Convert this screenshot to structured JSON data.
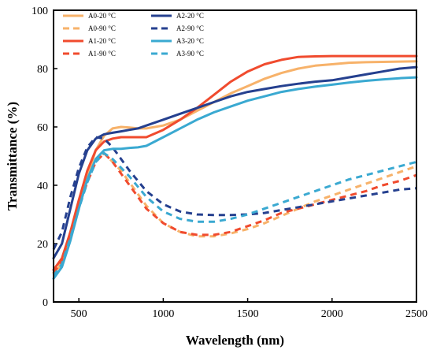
{
  "chart_data": {
    "type": "line",
    "xlabel": "Wavelength (nm)",
    "ylabel": "Transmittance (%)",
    "xlim": [
      350,
      2500
    ],
    "ylim": [
      0,
      100
    ],
    "xticks": [
      500,
      1000,
      1500,
      2000,
      2500
    ],
    "yticks": [
      0,
      20,
      40,
      60,
      80,
      100
    ],
    "grid": false,
    "legend_position": "top-left, two columns",
    "series": [
      {
        "name": "A0-20 °C",
        "color": "#f7b26a",
        "dash": "solid",
        "x": [
          350,
          400,
          450,
          500,
          550,
          600,
          650,
          700,
          750,
          800,
          850,
          900,
          1000,
          1100,
          1200,
          1300,
          1400,
          1500,
          1600,
          1700,
          1800,
          1900,
          2000,
          2100,
          2200,
          2300,
          2400,
          2500
        ],
        "y": [
          10,
          13,
          22,
          33,
          43,
          52,
          57,
          59.5,
          60,
          59.8,
          59.5,
          59.5,
          60.5,
          62.5,
          65.5,
          68.5,
          71.5,
          74,
          76.5,
          78.5,
          80,
          81,
          81.5,
          82,
          82.2,
          82.3,
          82.4,
          82.5
        ]
      },
      {
        "name": "A0-90 °C",
        "color": "#f7b26a",
        "dash": "dashed",
        "x": [
          350,
          400,
          450,
          500,
          550,
          600,
          650,
          700,
          750,
          800,
          900,
          1000,
          1100,
          1200,
          1300,
          1400,
          1500,
          1600,
          1700,
          1800,
          1900,
          2000,
          2100,
          2200,
          2300,
          2400,
          2500
        ],
        "y": [
          9,
          14,
          24,
          34,
          42,
          49,
          51,
          48,
          45,
          41,
          33,
          27,
          24,
          22.5,
          22.5,
          23.5,
          25,
          27,
          29.5,
          32,
          34.5,
          36.5,
          38.5,
          40.5,
          42.5,
          44.5,
          46.5
        ]
      },
      {
        "name": "A1-20 °C",
        "color": "#f04b2e",
        "dash": "solid",
        "x": [
          350,
          400,
          450,
          500,
          550,
          600,
          650,
          700,
          750,
          800,
          850,
          900,
          1000,
          1100,
          1200,
          1300,
          1400,
          1500,
          1600,
          1700,
          1800,
          1900,
          2000,
          2100,
          2200,
          2300,
          2400,
          2500
        ],
        "y": [
          11,
          15,
          24,
          35,
          45,
          52,
          55,
          56,
          56.5,
          56.5,
          56.5,
          56.5,
          59,
          62.5,
          66.5,
          71,
          75.5,
          79,
          81.5,
          83,
          84,
          84.2,
          84.3,
          84.3,
          84.3,
          84.3,
          84.3,
          84.3
        ]
      },
      {
        "name": "A1-90 °C",
        "color": "#f04b2e",
        "dash": "dashed",
        "x": [
          350,
          400,
          450,
          500,
          550,
          600,
          650,
          700,
          750,
          800,
          900,
          1000,
          1100,
          1200,
          1300,
          1400,
          1500,
          1600,
          1700,
          1800,
          1900,
          2000,
          2100,
          2200,
          2300,
          2400,
          2500
        ],
        "y": [
          10,
          14,
          23,
          33,
          41,
          48,
          51,
          48,
          44,
          40,
          32,
          27,
          24,
          23,
          23,
          24,
          26,
          28,
          30.5,
          32,
          33.5,
          35,
          36.5,
          38,
          40,
          41.5,
          43.5
        ]
      },
      {
        "name": "A2-20 °C",
        "color": "#25408f",
        "dash": "solid",
        "x": [
          350,
          400,
          450,
          500,
          550,
          600,
          650,
          700,
          750,
          800,
          850,
          900,
          1000,
          1100,
          1200,
          1300,
          1400,
          1500,
          1600,
          1700,
          1800,
          1900,
          2000,
          2100,
          2200,
          2300,
          2400,
          2500
        ],
        "y": [
          15,
          20,
          32,
          44,
          52,
          56,
          57.5,
          58,
          58.5,
          59,
          59.5,
          60.5,
          62.5,
          64.5,
          66.5,
          68.5,
          70.5,
          72,
          73,
          74,
          74.8,
          75.5,
          76,
          77,
          78,
          79,
          80,
          80.5
        ]
      },
      {
        "name": "A2-90 °C",
        "color": "#25408f",
        "dash": "dashed",
        "x": [
          350,
          400,
          450,
          500,
          550,
          600,
          650,
          700,
          750,
          800,
          900,
          1000,
          1100,
          1200,
          1300,
          1400,
          1500,
          1600,
          1700,
          1800,
          1900,
          2000,
          2100,
          2200,
          2300,
          2400,
          2500
        ],
        "y": [
          18,
          24,
          36,
          46,
          53,
          56.5,
          56,
          53,
          49,
          45,
          38,
          33.5,
          31,
          30,
          29.8,
          29.8,
          30,
          30.5,
          31.5,
          32.5,
          33.5,
          34.5,
          35.5,
          36.5,
          37.5,
          38.5,
          39
        ]
      },
      {
        "name": "A3-20 °C",
        "color": "#3aa9d1",
        "dash": "solid",
        "x": [
          350,
          400,
          450,
          500,
          550,
          600,
          650,
          700,
          750,
          800,
          850,
          900,
          1000,
          1100,
          1200,
          1300,
          1400,
          1500,
          1600,
          1700,
          1800,
          1900,
          2000,
          2100,
          2200,
          2300,
          2400,
          2500
        ],
        "y": [
          8,
          12,
          21,
          32,
          42,
          49,
          52,
          52.5,
          52.5,
          52.8,
          53,
          53.5,
          56.5,
          59.5,
          62.5,
          65,
          67,
          69,
          70.5,
          72,
          73,
          73.8,
          74.5,
          75.2,
          75.8,
          76.3,
          76.7,
          77
        ]
      },
      {
        "name": "A3-90 °C",
        "color": "#3aa9d1",
        "dash": "dashed",
        "x": [
          350,
          400,
          450,
          500,
          550,
          600,
          650,
          700,
          750,
          800,
          900,
          1000,
          1100,
          1200,
          1300,
          1400,
          1500,
          1600,
          1700,
          1800,
          1900,
          2000,
          2100,
          2200,
          2300,
          2400,
          2500
        ],
        "y": [
          9,
          13,
          22,
          32,
          41,
          48,
          51,
          49,
          46,
          43,
          36,
          31,
          28.5,
          27.5,
          27.5,
          28.5,
          30,
          32,
          34,
          36,
          38,
          40,
          42,
          43.5,
          45,
          46.5,
          48
        ]
      }
    ]
  }
}
